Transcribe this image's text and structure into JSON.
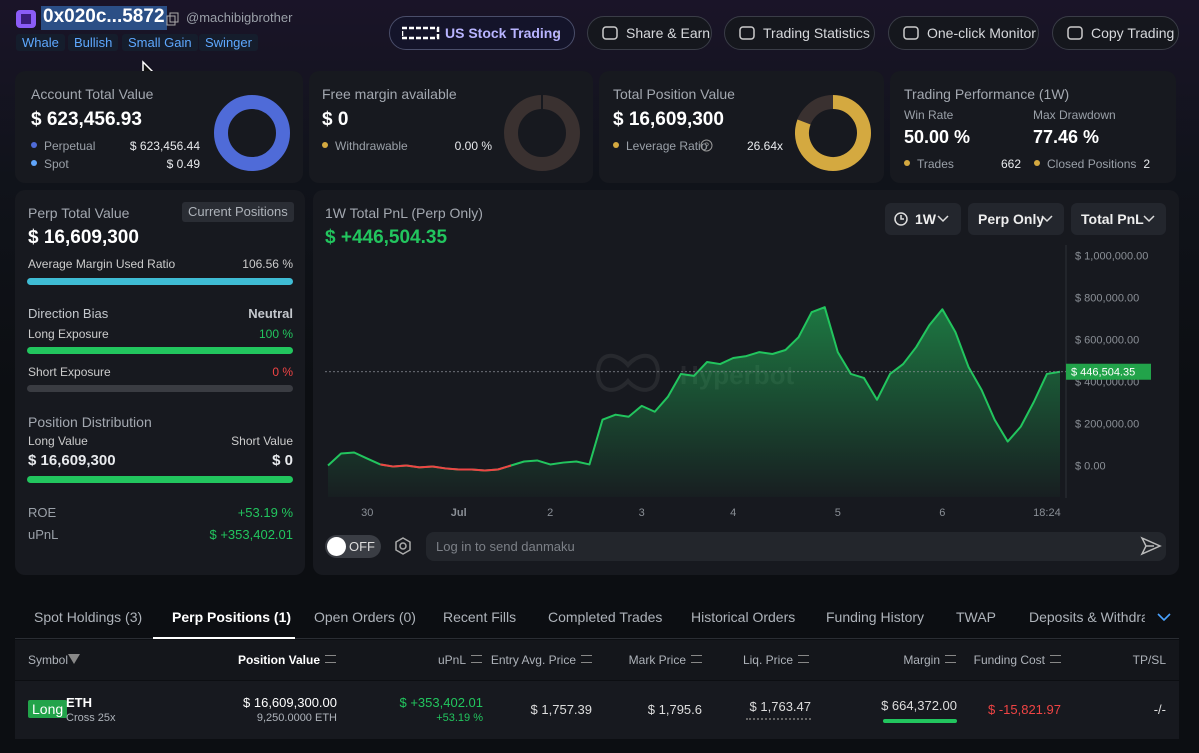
{
  "header": {
    "address": "0x020c...5872",
    "handle": "@machibigbrother",
    "tags": [
      "Whale",
      "Bullish",
      "Small Gain",
      "Swinger"
    ],
    "buttons": [
      "US Stock Trading",
      "Share & Earn",
      "Trading Statistics",
      "One-click Monitor",
      "Copy Trading"
    ]
  },
  "account": {
    "title": "Account Total Value",
    "value": "$ 623,456.93",
    "rows": [
      {
        "label": "Perpetual",
        "value": "$ 623,456.44"
      },
      {
        "label": "Spot",
        "value": "$ 0.49"
      }
    ]
  },
  "margin": {
    "title": "Free margin available",
    "value": "$ 0",
    "rows": [
      {
        "label": "Withdrawable",
        "value": "0.00 %"
      }
    ]
  },
  "position": {
    "title": "Total Position Value",
    "value": "$ 16,609,300",
    "rows": [
      {
        "label": "Leverage Ratio",
        "value": "26.64x"
      }
    ]
  },
  "performance": {
    "title": "Trading Performance (1W)",
    "stats": [
      {
        "label": "Win Rate",
        "value": "50.00 %"
      },
      {
        "label": "Max Drawdown",
        "value": "77.46 %"
      }
    ],
    "rows": [
      {
        "label": "Trades",
        "value": "662"
      },
      {
        "label": "Closed Positions",
        "value": "2"
      }
    ]
  },
  "perp": {
    "title": "Perp Total Value",
    "button": "Current Positions",
    "value": "$ 16,609,300",
    "margin_label": "Average Margin Used Ratio",
    "margin_value": "106.56 %",
    "bias_label": "Direction Bias",
    "bias_value": "Neutral",
    "long_label": "Long Exposure",
    "long_value": "100 %",
    "short_label": "Short Exposure",
    "short_value": "0 %",
    "dist_title": "Position Distribution",
    "long_value_label": "Long Value",
    "short_value_label": "Short Value",
    "long_amount": "$ 16,609,300",
    "short_amount": "$ 0",
    "roe_label": "ROE",
    "roe": "+53.19 %",
    "upnl_label": "uPnL",
    "upnl": "$ +353,402.01"
  },
  "pnl": {
    "title": "1W Total PnL (Perp Only)",
    "value": "$ +446,504.35",
    "filters": [
      "1W",
      "Perp Only",
      "Total PnL"
    ],
    "watermark": "Hyperbot"
  },
  "chart_data": {
    "type": "line",
    "color": "#22c55e",
    "negative_color": "#ef4444",
    "categories": [
      null,
      null,
      null,
      "30",
      null,
      null,
      null,
      null,
      null,
      null,
      "Jul",
      null,
      null,
      null,
      null,
      null,
      null,
      "2",
      null,
      null,
      null,
      null,
      null,
      null,
      "3",
      null,
      null,
      null,
      null,
      null,
      null,
      "4",
      null,
      null,
      null,
      null,
      null,
      null,
      null,
      "5",
      null,
      null,
      null,
      null,
      null,
      null,
      null,
      "6",
      null,
      null,
      null,
      null,
      null,
      null,
      null,
      "18:24",
      null
    ],
    "values": [
      0,
      57000,
      62000,
      33000,
      5000,
      -5000,
      0,
      -9000,
      -5000,
      -14000,
      -19000,
      -19000,
      -24000,
      -19000,
      0,
      19000,
      24000,
      5000,
      14000,
      19000,
      5000,
      218000,
      242000,
      232000,
      284000,
      256000,
      327000,
      436000,
      427000,
      493000,
      483000,
      512000,
      521000,
      540000,
      531000,
      550000,
      611000,
      730000,
      754000,
      540000,
      436000,
      417000,
      313000,
      436000,
      483000,
      564000,
      668000,
      744000,
      635000,
      469000,
      360000,
      218000,
      114000,
      185000,
      303000,
      436000,
      446504.35
    ],
    "ylim": [
      -150000,
      1050000
    ],
    "yticks": [
      {
        "value": 0,
        "label": "$ 0.00"
      },
      {
        "value": 200000,
        "label": "$ 200,000.00"
      },
      {
        "value": 400000,
        "label": "$ 400,000.00"
      },
      {
        "value": 600000,
        "label": "$ 600,000.00"
      },
      {
        "value": 800000,
        "label": "$ 800,000.00"
      },
      {
        "value": 1000000,
        "label": "$ 1,000,000.00"
      }
    ],
    "current": {
      "value": 446504.35,
      "label": "$ 446,504.35"
    },
    "grid": false
  },
  "danmaku": {
    "toggle": "OFF",
    "placeholder": "Log in to send danmaku"
  },
  "tabs": [
    "Spot Holdings (3)",
    "Perp Positions (1)",
    "Open Orders (0)",
    "Recent Fills",
    "Completed Trades",
    "Historical Orders",
    "Funding History",
    "TWAP",
    "Deposits & Withdrawals"
  ],
  "active_tab": 1,
  "table": {
    "columns": [
      "Symbol",
      "Position Value",
      "uPnL",
      "Entry Avg. Price",
      "Mark Price",
      "Liq. Price",
      "Margin",
      "Funding Cost",
      "TP/SL"
    ],
    "row": {
      "side": "Long",
      "symbol": "ETH",
      "mode": "Cross 25x",
      "position_value": "$ 16,609,300.00",
      "size": "9,250.0000 ETH",
      "upnl": "$ +353,402.01",
      "upnl_pct": "+53.19 %",
      "entry": "$ 1,757.39",
      "mark": "$ 1,795.6",
      "liq": "$ 1,763.47",
      "margin": "$ 664,372.00",
      "funding": "$ -15,821.97",
      "tpsl": "-/-"
    }
  }
}
